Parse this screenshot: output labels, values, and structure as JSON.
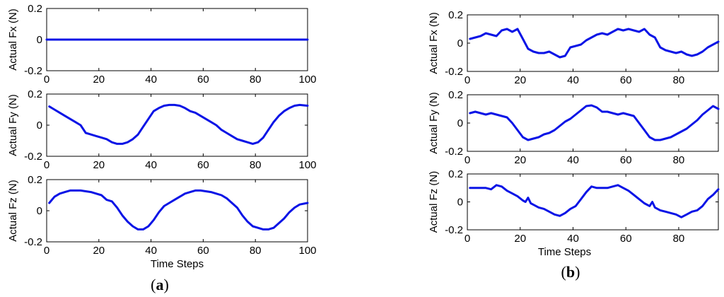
{
  "chart_data": [
    {
      "type": "line",
      "panel": "a",
      "ylabel": "Actual Fx (N)",
      "xlabel": "",
      "xlim": [
        0,
        100
      ],
      "ylim": [
        -0.2,
        0.2
      ],
      "xticks": [
        "0",
        "20",
        "40",
        "60",
        "80",
        "100"
      ],
      "yticks": [
        "0.2",
        "0",
        "-0.2"
      ],
      "color": "#0a14e6",
      "series": [
        {
          "x": [
            0,
            100
          ],
          "y": [
            0,
            0
          ]
        }
      ]
    },
    {
      "type": "line",
      "panel": "a",
      "ylabel": "Actual Fy (N)",
      "xlabel": "",
      "xlim": [
        0,
        100
      ],
      "ylim": [
        -0.2,
        0.2
      ],
      "xticks": [
        "0",
        "20",
        "40",
        "60",
        "80",
        "100"
      ],
      "yticks": [
        "0.2",
        "0",
        "-0.2"
      ],
      "color": "#0a14e6",
      "series": [
        {
          "x": [
            1,
            3,
            5,
            7,
            9,
            11,
            13,
            15,
            17,
            19,
            21,
            23,
            25,
            27,
            29,
            31,
            33,
            35,
            37,
            39,
            41,
            43,
            45,
            47,
            49,
            51,
            53,
            55,
            57,
            59,
            61,
            63,
            65,
            67,
            69,
            71,
            73,
            75,
            77,
            79,
            81,
            83,
            85,
            87,
            89,
            91,
            93,
            95,
            97,
            100
          ],
          "y": [
            0.12,
            0.1,
            0.08,
            0.06,
            0.04,
            0.02,
            0.0,
            -0.05,
            -0.06,
            -0.07,
            -0.08,
            -0.09,
            -0.11,
            -0.12,
            -0.12,
            -0.11,
            -0.09,
            -0.06,
            -0.01,
            0.04,
            0.09,
            0.11,
            0.125,
            0.13,
            0.13,
            0.125,
            0.11,
            0.09,
            0.08,
            0.06,
            0.04,
            0.02,
            0.0,
            -0.03,
            -0.05,
            -0.07,
            -0.09,
            -0.1,
            -0.11,
            -0.12,
            -0.11,
            -0.08,
            -0.03,
            0.02,
            0.06,
            0.09,
            0.11,
            0.125,
            0.13,
            0.125
          ]
        }
      ]
    },
    {
      "type": "line",
      "panel": "a",
      "ylabel": "Actual Fz (N)",
      "xlabel": "Time Steps",
      "xlim": [
        0,
        100
      ],
      "ylim": [
        -0.2,
        0.2
      ],
      "xticks": [
        "0",
        "20",
        "40",
        "60",
        "80",
        "100"
      ],
      "yticks": [
        "0.2",
        "0",
        "-0.2"
      ],
      "color": "#0a14e6",
      "series": [
        {
          "x": [
            1,
            3,
            5,
            7,
            9,
            11,
            13,
            15,
            17,
            19,
            21,
            23,
            25,
            27,
            29,
            31,
            33,
            35,
            37,
            39,
            41,
            43,
            45,
            47,
            49,
            51,
            53,
            55,
            57,
            59,
            61,
            63,
            65,
            67,
            69,
            71,
            73,
            75,
            77,
            79,
            81,
            83,
            85,
            87,
            89,
            91,
            93,
            95,
            97,
            100
          ],
          "y": [
            0.05,
            0.09,
            0.11,
            0.12,
            0.13,
            0.13,
            0.13,
            0.125,
            0.12,
            0.11,
            0.1,
            0.07,
            0.06,
            0.02,
            -0.03,
            -0.07,
            -0.1,
            -0.12,
            -0.12,
            -0.1,
            -0.06,
            -0.01,
            0.03,
            0.05,
            0.07,
            0.09,
            0.11,
            0.12,
            0.13,
            0.13,
            0.125,
            0.12,
            0.11,
            0.1,
            0.08,
            0.05,
            0.02,
            -0.03,
            -0.07,
            -0.1,
            -0.11,
            -0.12,
            -0.12,
            -0.11,
            -0.08,
            -0.05,
            -0.01,
            0.02,
            0.04,
            0.05
          ]
        }
      ]
    },
    {
      "type": "line",
      "panel": "b",
      "ylabel": "Actual Fx (N)",
      "xlabel": "",
      "xlim": [
        0,
        95
      ],
      "ylim": [
        -0.2,
        0.2
      ],
      "xticks": [
        "0",
        "20",
        "40",
        "60",
        "80"
      ],
      "yticks": [
        "0.2",
        "0",
        "-0.2"
      ],
      "color": "#0a14e6",
      "series": [
        {
          "x": [
            1,
            3,
            5,
            7,
            9,
            11,
            13,
            15,
            17,
            19,
            21,
            23,
            25,
            27,
            29,
            31,
            33,
            35,
            37,
            39,
            41,
            43,
            45,
            47,
            49,
            51,
            53,
            55,
            57,
            59,
            61,
            63,
            65,
            67,
            69,
            71,
            73,
            75,
            77,
            79,
            81,
            83,
            85,
            87,
            89,
            91,
            93,
            95
          ],
          "y": [
            0.03,
            0.04,
            0.05,
            0.07,
            0.06,
            0.05,
            0.09,
            0.1,
            0.08,
            0.1,
            0.03,
            -0.04,
            -0.06,
            -0.07,
            -0.07,
            -0.06,
            -0.08,
            -0.1,
            -0.09,
            -0.03,
            -0.02,
            -0.01,
            0.02,
            0.04,
            0.06,
            0.07,
            0.06,
            0.08,
            0.1,
            0.09,
            0.1,
            0.09,
            0.08,
            0.1,
            0.06,
            0.04,
            -0.03,
            -0.05,
            -0.06,
            -0.07,
            -0.06,
            -0.08,
            -0.09,
            -0.08,
            -0.06,
            -0.03,
            -0.01,
            0.01
          ]
        }
      ]
    },
    {
      "type": "line",
      "panel": "b",
      "ylabel": "Actual Fy (N)",
      "xlabel": "",
      "xlim": [
        0,
        95
      ],
      "ylim": [
        -0.2,
        0.2
      ],
      "xticks": [
        "0",
        "20",
        "40",
        "60",
        "80"
      ],
      "yticks": [
        "0.2",
        "0",
        "-0.2"
      ],
      "color": "#0a14e6",
      "series": [
        {
          "x": [
            1,
            3,
            5,
            7,
            9,
            11,
            13,
            15,
            17,
            19,
            21,
            23,
            25,
            27,
            29,
            31,
            33,
            35,
            37,
            39,
            41,
            43,
            45,
            47,
            49,
            51,
            53,
            55,
            57,
            59,
            61,
            63,
            65,
            67,
            69,
            71,
            73,
            75,
            77,
            79,
            81,
            83,
            85,
            87,
            89,
            91,
            93,
            95
          ],
          "y": [
            0.07,
            0.08,
            0.07,
            0.06,
            0.07,
            0.06,
            0.05,
            0.04,
            0.0,
            -0.05,
            -0.1,
            -0.12,
            -0.11,
            -0.1,
            -0.08,
            -0.07,
            -0.05,
            -0.02,
            0.01,
            0.03,
            0.06,
            0.09,
            0.12,
            0.125,
            0.11,
            0.08,
            0.08,
            0.07,
            0.06,
            0.07,
            0.06,
            0.05,
            0.0,
            -0.05,
            -0.1,
            -0.12,
            -0.12,
            -0.11,
            -0.1,
            -0.08,
            -0.06,
            -0.04,
            -0.01,
            0.02,
            0.06,
            0.09,
            0.12,
            0.1
          ]
        }
      ]
    },
    {
      "type": "line",
      "panel": "b",
      "ylabel": "Actual Fz (N)",
      "xlabel": "Time Steps",
      "xlim": [
        0,
        95
      ],
      "ylim": [
        -0.2,
        0.2
      ],
      "xticks": [
        "0",
        "20",
        "40",
        "60",
        "80"
      ],
      "yticks": [
        "0.2",
        "0",
        "-0.2"
      ],
      "color": "#0a14e6",
      "series": [
        {
          "x": [
            1,
            3,
            5,
            7,
            9,
            11,
            13,
            15,
            17,
            19,
            21,
            22,
            23,
            24,
            25,
            27,
            29,
            31,
            33,
            35,
            37,
            39,
            41,
            43,
            45,
            47,
            49,
            51,
            53,
            55,
            57,
            59,
            61,
            63,
            65,
            67,
            69,
            70,
            71,
            73,
            75,
            77,
            79,
            81,
            83,
            85,
            87,
            89,
            91,
            93,
            95
          ],
          "y": [
            0.1,
            0.1,
            0.1,
            0.1,
            0.09,
            0.12,
            0.11,
            0.08,
            0.06,
            0.04,
            0.01,
            0.0,
            0.03,
            -0.01,
            -0.02,
            -0.04,
            -0.05,
            -0.07,
            -0.09,
            -0.1,
            -0.08,
            -0.05,
            -0.03,
            0.02,
            0.07,
            0.11,
            0.1,
            0.1,
            0.1,
            0.11,
            0.12,
            0.1,
            0.08,
            0.05,
            0.02,
            -0.01,
            -0.03,
            0.0,
            -0.04,
            -0.06,
            -0.07,
            -0.08,
            -0.09,
            -0.11,
            -0.09,
            -0.07,
            -0.06,
            -0.03,
            0.02,
            0.05,
            0.09
          ]
        }
      ]
    }
  ],
  "figure_labels": {
    "panel_a": {
      "open": "(",
      "letter": "a",
      "close": ")"
    },
    "panel_b": {
      "open": "(",
      "letter": "b",
      "close": ")"
    }
  }
}
